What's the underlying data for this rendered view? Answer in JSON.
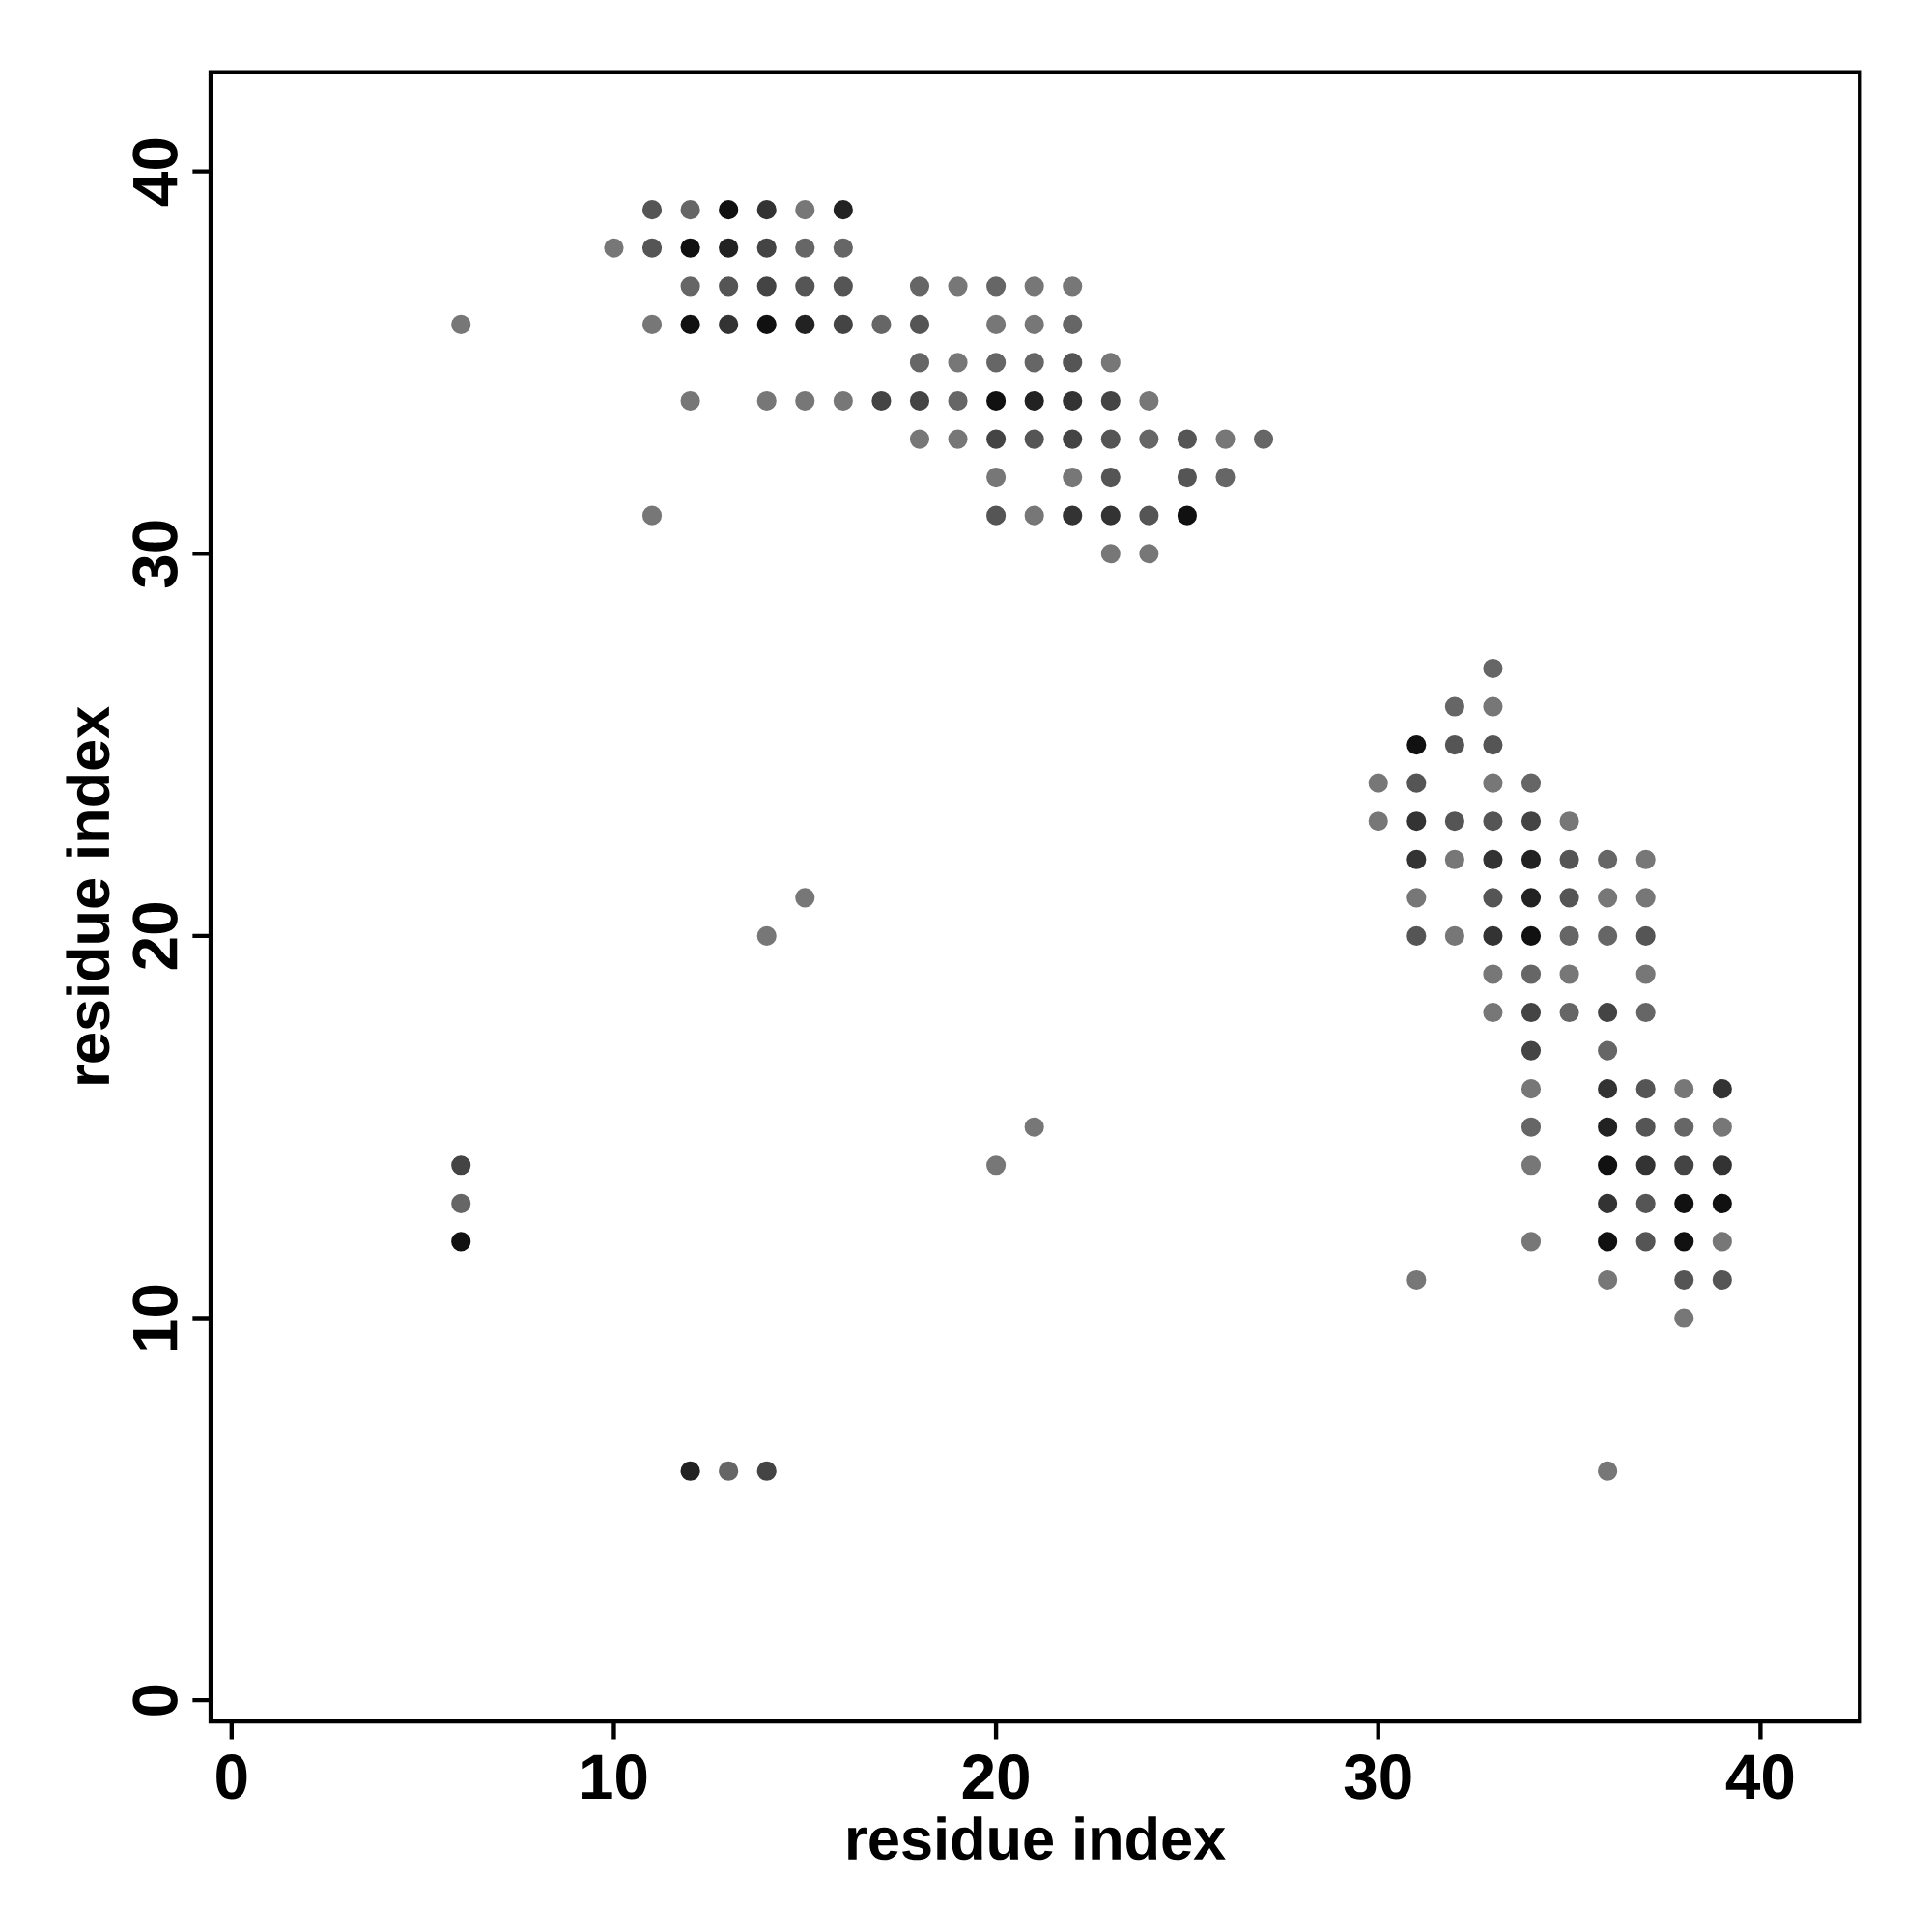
{
  "chart_data": {
    "type": "scatter",
    "xlabel": "residue index",
    "ylabel": "residue index",
    "marker": "circle",
    "xlim": [
      -0.55,
      42.6
    ],
    "ylim": [
      -0.55,
      42.6
    ],
    "xticks": [
      0,
      10,
      20,
      30,
      40
    ],
    "yticks": [
      0,
      10,
      20,
      30,
      40
    ],
    "x": [
      11,
      12,
      13,
      14,
      15,
      16,
      10,
      11,
      12,
      13,
      14,
      15,
      16,
      12,
      13,
      14,
      15,
      16,
      18,
      19,
      20,
      21,
      22,
      6,
      11,
      12,
      13,
      14,
      15,
      16,
      17,
      18,
      20,
      21,
      22,
      18,
      19,
      20,
      21,
      22,
      23,
      12,
      14,
      15,
      16,
      17,
      18,
      19,
      20,
      21,
      22,
      23,
      24,
      18,
      19,
      20,
      21,
      22,
      23,
      24,
      25,
      26,
      27,
      20,
      22,
      23,
      25,
      26,
      11,
      20,
      21,
      22,
      23,
      24,
      25,
      23,
      24,
      33,
      32,
      33,
      31,
      32,
      33,
      30,
      31,
      33,
      34,
      30,
      31,
      32,
      33,
      34,
      35,
      31,
      32,
      33,
      34,
      35,
      36,
      37,
      15,
      31,
      33,
      34,
      35,
      36,
      37,
      14,
      31,
      32,
      33,
      34,
      35,
      36,
      37,
      33,
      34,
      35,
      37,
      33,
      34,
      35,
      36,
      37,
      34,
      36,
      34,
      36,
      37,
      38,
      39,
      21,
      34,
      36,
      37,
      38,
      39,
      6,
      20,
      34,
      36,
      37,
      38,
      39,
      6,
      36,
      37,
      38,
      39,
      6,
      34,
      36,
      37,
      38,
      39,
      31,
      36,
      38,
      39,
      38,
      12,
      13,
      14,
      36
    ],
    "values": [
      39,
      39,
      39,
      39,
      39,
      39,
      38,
      38,
      38,
      38,
      38,
      38,
      38,
      37,
      37,
      37,
      37,
      37,
      37,
      37,
      37,
      37,
      37,
      36,
      36,
      36,
      36,
      36,
      36,
      36,
      36,
      36,
      36,
      36,
      36,
      35,
      35,
      35,
      35,
      35,
      35,
      34,
      34,
      34,
      34,
      34,
      34,
      34,
      34,
      34,
      34,
      34,
      34,
      33,
      33,
      33,
      33,
      33,
      33,
      33,
      33,
      33,
      33,
      32,
      32,
      32,
      32,
      32,
      31,
      31,
      31,
      31,
      31,
      31,
      31,
      30,
      30,
      27,
      26,
      26,
      25,
      25,
      25,
      24,
      24,
      24,
      24,
      23,
      23,
      23,
      23,
      23,
      23,
      22,
      22,
      22,
      22,
      22,
      22,
      22,
      21,
      21,
      21,
      21,
      21,
      21,
      21,
      20,
      20,
      20,
      20,
      20,
      20,
      20,
      20,
      19,
      19,
      19,
      19,
      18,
      18,
      18,
      18,
      18,
      17,
      17,
      16,
      16,
      16,
      16,
      16,
      15,
      15,
      15,
      15,
      15,
      15,
      14,
      14,
      14,
      14,
      14,
      14,
      14,
      13,
      13,
      13,
      13,
      13,
      12,
      12,
      12,
      12,
      12,
      12,
      11,
      11,
      11,
      11,
      10,
      6,
      6,
      6,
      6
    ],
    "colors": [
      "#555555",
      "#666666",
      "#111111",
      "#333333",
      "#777777",
      "#222222",
      "#777777",
      "#555555",
      "#111111",
      "#222222",
      "#444444",
      "#666666",
      "#666666",
      "#666666",
      "#555555",
      "#444444",
      "#555555",
      "#555555",
      "#666666",
      "#777777",
      "#666666",
      "#777777",
      "#777777",
      "#777777",
      "#777777",
      "#111111",
      "#333333",
      "#111111",
      "#222222",
      "#444444",
      "#666666",
      "#555555",
      "#777777",
      "#777777",
      "#666666",
      "#666666",
      "#777777",
      "#666666",
      "#666666",
      "#555555",
      "#777777",
      "#777777",
      "#777777",
      "#777777",
      "#777777",
      "#444444",
      "#444444",
      "#666666",
      "#111111",
      "#222222",
      "#333333",
      "#444444",
      "#777777",
      "#777777",
      "#777777",
      "#444444",
      "#555555",
      "#444444",
      "#555555",
      "#666666",
      "#555555",
      "#777777",
      "#666666",
      "#777777",
      "#777777",
      "#555555",
      "#555555",
      "#666666",
      "#777777",
      "#555555",
      "#777777",
      "#333333",
      "#333333",
      "#555555",
      "#111111",
      "#777777",
      "#777777",
      "#666666",
      "#666666",
      "#777777",
      "#111111",
      "#555555",
      "#555555",
      "#777777",
      "#555555",
      "#777777",
      "#666666",
      "#777777",
      "#333333",
      "#555555",
      "#555555",
      "#444444",
      "#777777",
      "#333333",
      "#777777",
      "#333333",
      "#222222",
      "#555555",
      "#666666",
      "#777777",
      "#777777",
      "#777777",
      "#555555",
      "#222222",
      "#555555",
      "#777777",
      "#777777",
      "#777777",
      "#555555",
      "#777777",
      "#333333",
      "#111111",
      "#666666",
      "#666666",
      "#555555",
      "#777777",
      "#666666",
      "#777777",
      "#777777",
      "#777777",
      "#444444",
      "#666666",
      "#444444",
      "#666666",
      "#444444",
      "#666666",
      "#777777",
      "#333333",
      "#555555",
      "#777777",
      "#333333",
      "#777777",
      "#666666",
      "#222222",
      "#555555",
      "#666666",
      "#777777",
      "#444444",
      "#777777",
      "#777777",
      "#111111",
      "#333333",
      "#444444",
      "#333333",
      "#666666",
      "#333333",
      "#555555",
      "#111111",
      "#111111",
      "#111111",
      "#777777",
      "#111111",
      "#555555",
      "#111111",
      "#777777",
      "#777777",
      "#777777",
      "#555555",
      "#555555",
      "#777777",
      "#222222",
      "#666666",
      "#444444",
      "#777777"
    ]
  }
}
